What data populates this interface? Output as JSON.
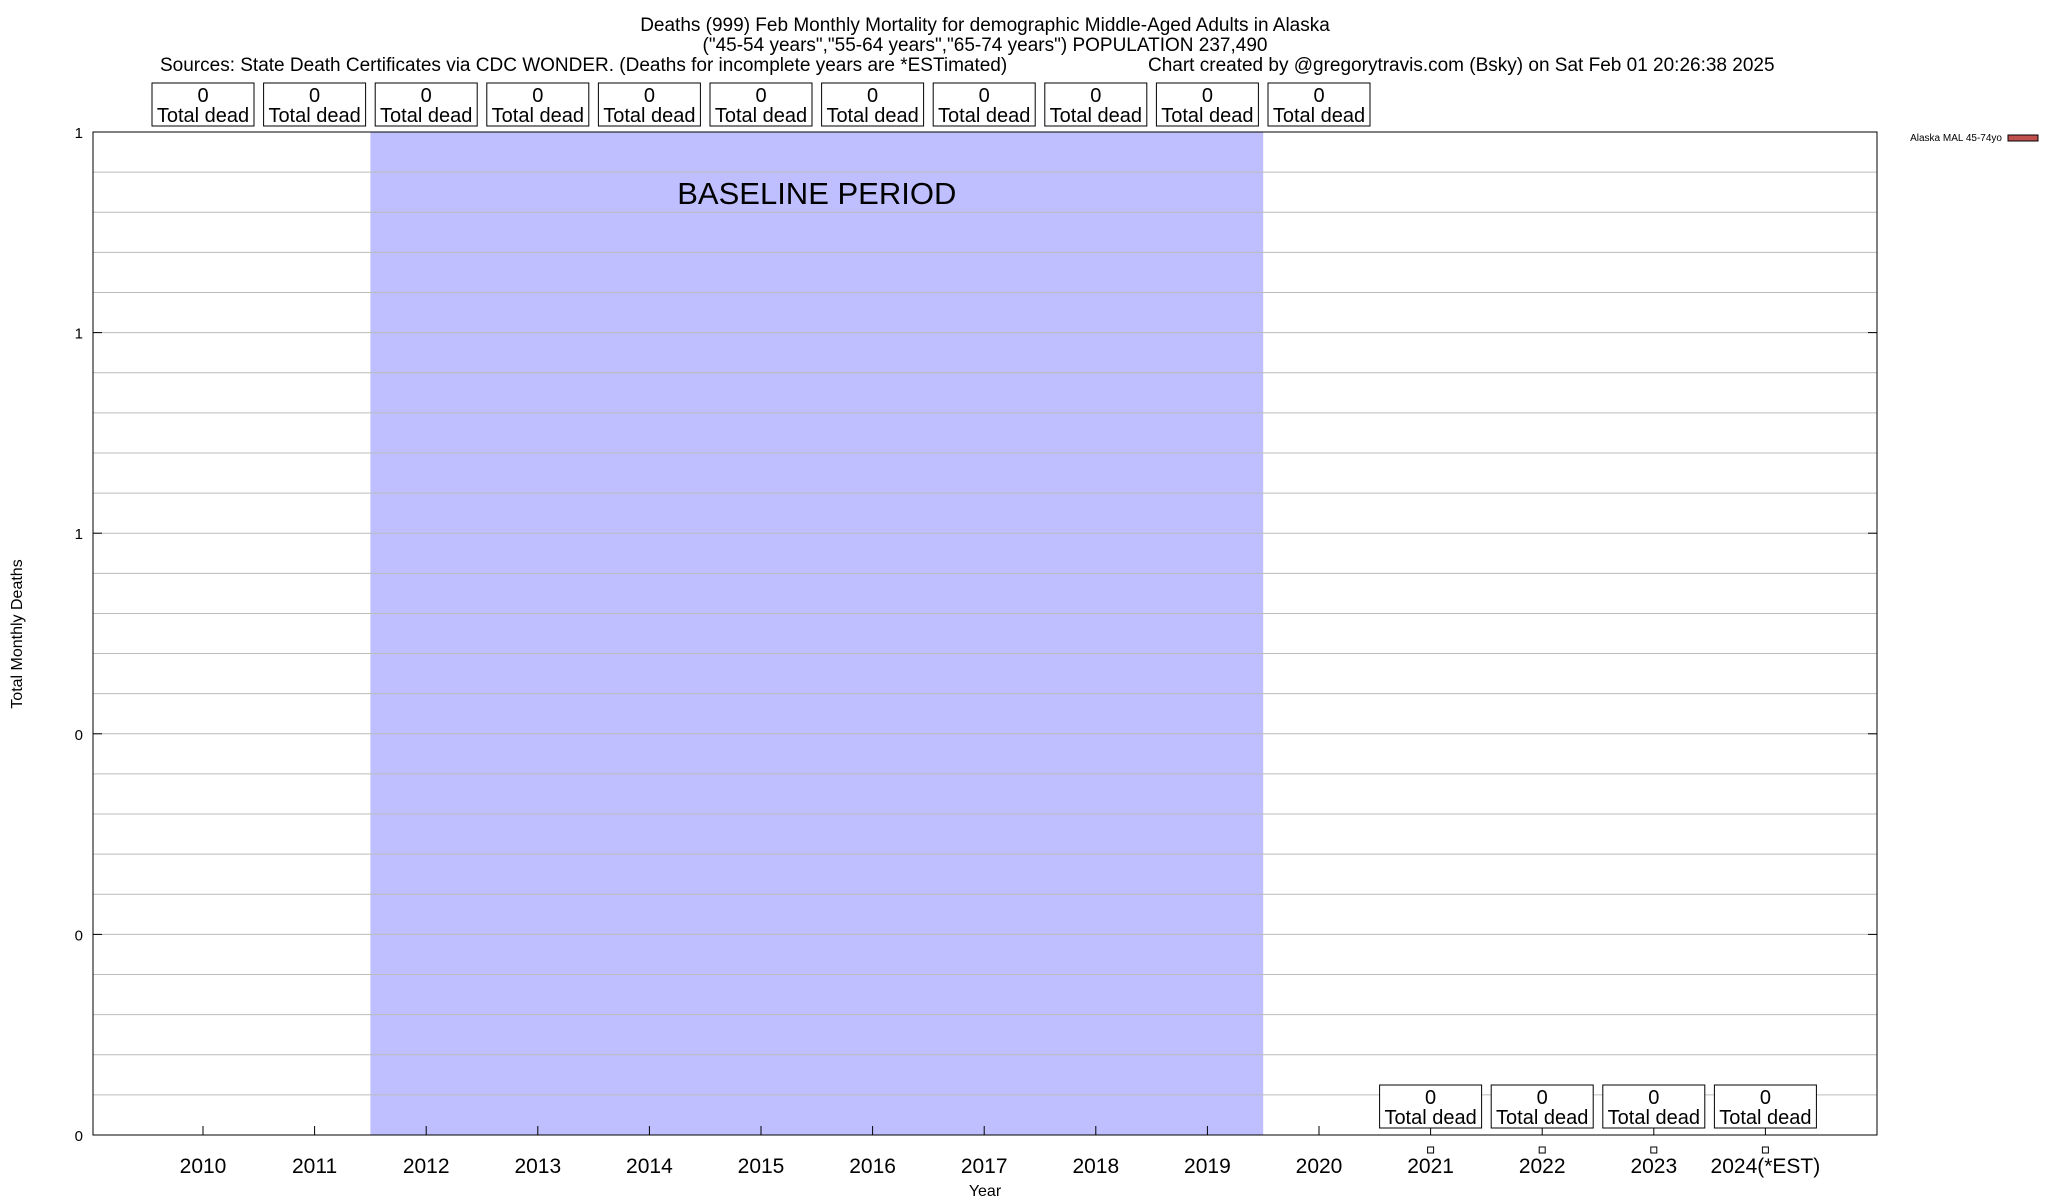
{
  "chart_data": {
    "type": "bar",
    "title_line1": "Deaths (999) Feb Monthly Mortality for demographic Middle-Aged Adults in Alaska",
    "title_line2": "(\"45-54 years\",\"55-64 years\",\"65-74 years\") POPULATION 237,490",
    "sources": "Sources: State Death Certificates via CDC WONDER. (Deaths for incomplete years are *ESTimated)",
    "credit": "Chart created by @gregorytravis.com (Bsky) on Sat Feb 01 20:26:38 2025",
    "xlabel": "Year",
    "ylabel": "Total Monthly Deaths",
    "categories": [
      "2010",
      "2011",
      "2012",
      "2013",
      "2014",
      "2015",
      "2016",
      "2017",
      "2018",
      "2019",
      "2020",
      "2021",
      "2022",
      "2023",
      "2024(*EST)"
    ],
    "series": [
      {
        "name": "Alaska MAL 45-74yo",
        "color": "#c0504d",
        "values": [
          0,
          0,
          0,
          0,
          0,
          0,
          0,
          0,
          0,
          0,
          0,
          0,
          0,
          0,
          0
        ]
      }
    ],
    "top_labels": {
      "categories": [
        "2010",
        "2011",
        "2012",
        "2013",
        "2014",
        "2015",
        "2016",
        "2017",
        "2018",
        "2019",
        "2020"
      ],
      "values": [
        "0",
        "0",
        "0",
        "0",
        "0",
        "0",
        "0",
        "0",
        "0",
        "0",
        "0"
      ],
      "caption": "Total dead"
    },
    "bottom_labels": {
      "categories": [
        "2021",
        "2022",
        "2023",
        "2024(*EST)"
      ],
      "values": [
        "0",
        "0",
        "0",
        "0"
      ],
      "caption": "Total dead"
    },
    "y_tick_labels": [
      "0",
      "0",
      "0",
      "1",
      "1",
      "1"
    ],
    "ylim": [
      0,
      1
    ],
    "baseline": {
      "label": "BASELINE PERIOD",
      "start": "2012",
      "end": "2019",
      "color": "#bfbfff"
    },
    "grid": true,
    "legend_position": "top-right"
  }
}
